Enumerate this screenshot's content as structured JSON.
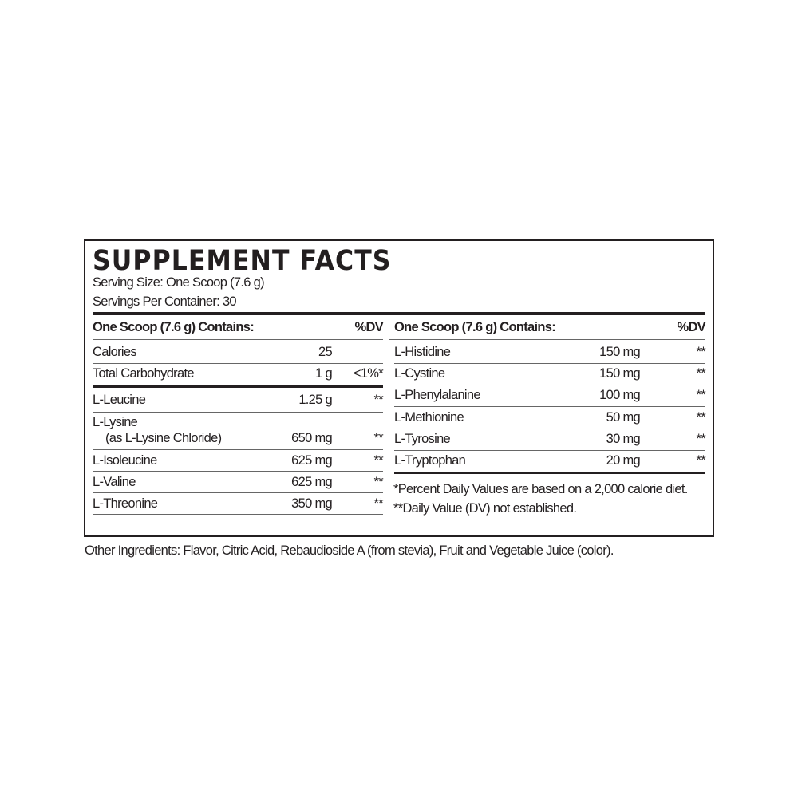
{
  "title": "SUPPLEMENT FACTS",
  "serving_size": "Serving Size: One Scoop (7.6 g)",
  "servings_per_container": "Servings Per Container: 30",
  "left_table": {
    "header": {
      "label": "One Scoop (7.6 g) Contains:",
      "dv": "%DV"
    },
    "rows": [
      {
        "name": "Calories",
        "amount": "25",
        "dv": ""
      },
      {
        "name": "Total Carbohydrate",
        "amount": "1 g",
        "dv": "<1%*"
      },
      {
        "name": "L-Leucine",
        "amount": "1.25 g",
        "dv": "**"
      },
      {
        "name": "L-Lysine",
        "sub": "(as L-Lysine Chloride)",
        "amount": "650 mg",
        "dv": "**"
      },
      {
        "name": "L-Isoleucine",
        "amount": "625 mg",
        "dv": "**"
      },
      {
        "name": "L-Valine",
        "amount": "625 mg",
        "dv": "**"
      },
      {
        "name": "L-Threonine",
        "amount": "350 mg",
        "dv": "**"
      }
    ]
  },
  "right_table": {
    "header": {
      "label": "One Scoop (7.6 g) Contains:",
      "dv": "%DV"
    },
    "rows": [
      {
        "name": "L-Histidine",
        "amount": "150 mg",
        "dv": "**"
      },
      {
        "name": "L-Cystine",
        "amount": "150 mg",
        "dv": "**"
      },
      {
        "name": "L-Phenylalanine",
        "amount": "100 mg",
        "dv": "**"
      },
      {
        "name": "L-Methionine",
        "amount": "50 mg",
        "dv": "**"
      },
      {
        "name": "L-Tyrosine",
        "amount": "30 mg",
        "dv": "**"
      },
      {
        "name": "L-Tryptophan",
        "amount": "20 mg",
        "dv": "**"
      }
    ]
  },
  "footnotes": [
    "*Percent Daily Values are based on a 2,000 calorie diet.",
    "**Daily Value (DV) not established."
  ],
  "other_ingredients": "Other Ingredients: Flavor, Citric Acid, Rebaudioside A (from stevia), Fruit and Vegetable Juice (color)."
}
